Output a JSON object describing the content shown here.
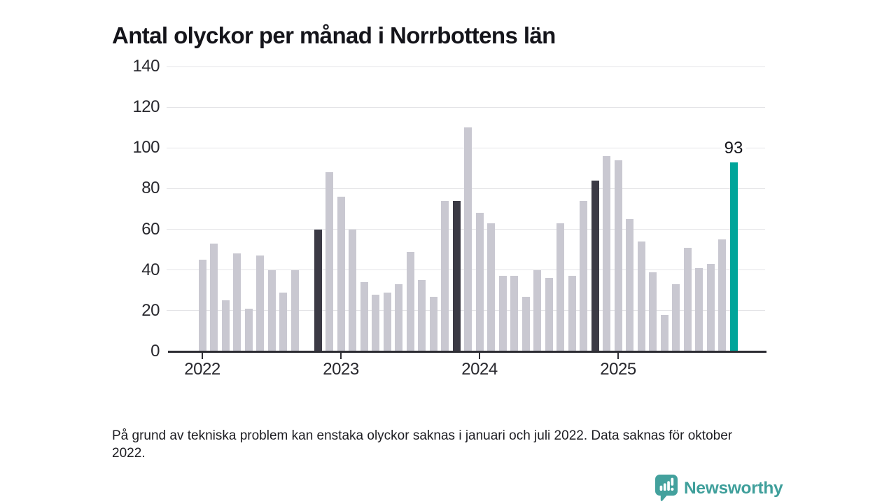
{
  "title": "Antal olyckor per månad i Norrbottens län",
  "footnote": "På grund av tekniska problem kan enstaka olyckor saknas i januari och juli 2022. Data saknas för oktober 2022.",
  "branding": {
    "name": "Newsworthy",
    "icon": "speech-bubble-bar-chart-icon",
    "logo_color": "#43a19d"
  },
  "colors": {
    "bar_default": "#c9c8d1",
    "bar_dark": "#3b3a45",
    "bar_highlight": "#00a59a",
    "axis": "#2d2d33",
    "gridline": "#e4e4e7",
    "text": "#14141a"
  },
  "chart_data": {
    "type": "bar",
    "title": "Antal olyckor per månad i Norrbottens län",
    "xlabel": "",
    "ylabel": "",
    "ylim": [
      0,
      140
    ],
    "y_ticks": [
      0,
      20,
      40,
      60,
      80,
      100,
      120,
      140
    ],
    "grid": true,
    "legend": false,
    "x_tick_labels": [
      {
        "label": "2022",
        "month_index": 0
      },
      {
        "label": "2023",
        "month_index": 12
      },
      {
        "label": "2024",
        "month_index": 24
      },
      {
        "label": "2025",
        "month_index": 36
      }
    ],
    "last_value_label": "93",
    "highlight_note": "dark bars = November of each year; teal bar = latest month (November 2025); October 2022 missing",
    "series": [
      {
        "month": "2022-01",
        "value": 45,
        "style": "default"
      },
      {
        "month": "2022-02",
        "value": 53,
        "style": "default"
      },
      {
        "month": "2022-03",
        "value": 25,
        "style": "default"
      },
      {
        "month": "2022-04",
        "value": 48,
        "style": "default"
      },
      {
        "month": "2022-05",
        "value": 21,
        "style": "default"
      },
      {
        "month": "2022-06",
        "value": 47,
        "style": "default"
      },
      {
        "month": "2022-07",
        "value": 40,
        "style": "default"
      },
      {
        "month": "2022-08",
        "value": 29,
        "style": "default"
      },
      {
        "month": "2022-09",
        "value": 40,
        "style": "default"
      },
      {
        "month": "2022-10",
        "value": null,
        "style": "default"
      },
      {
        "month": "2022-11",
        "value": 60,
        "style": "dark"
      },
      {
        "month": "2022-12",
        "value": 88,
        "style": "default"
      },
      {
        "month": "2023-01",
        "value": 76,
        "style": "default"
      },
      {
        "month": "2023-02",
        "value": 60,
        "style": "default"
      },
      {
        "month": "2023-03",
        "value": 34,
        "style": "default"
      },
      {
        "month": "2023-04",
        "value": 28,
        "style": "default"
      },
      {
        "month": "2023-05",
        "value": 29,
        "style": "default"
      },
      {
        "month": "2023-06",
        "value": 33,
        "style": "default"
      },
      {
        "month": "2023-07",
        "value": 49,
        "style": "default"
      },
      {
        "month": "2023-08",
        "value": 35,
        "style": "default"
      },
      {
        "month": "2023-09",
        "value": 27,
        "style": "default"
      },
      {
        "month": "2023-10",
        "value": 74,
        "style": "default"
      },
      {
        "month": "2023-11",
        "value": 74,
        "style": "dark"
      },
      {
        "month": "2023-12",
        "value": 110,
        "style": "default"
      },
      {
        "month": "2024-01",
        "value": 68,
        "style": "default"
      },
      {
        "month": "2024-02",
        "value": 63,
        "style": "default"
      },
      {
        "month": "2024-03",
        "value": 37,
        "style": "default"
      },
      {
        "month": "2024-04",
        "value": 37,
        "style": "default"
      },
      {
        "month": "2024-05",
        "value": 27,
        "style": "default"
      },
      {
        "month": "2024-06",
        "value": 40,
        "style": "default"
      },
      {
        "month": "2024-07",
        "value": 36,
        "style": "default"
      },
      {
        "month": "2024-08",
        "value": 63,
        "style": "default"
      },
      {
        "month": "2024-09",
        "value": 37,
        "style": "default"
      },
      {
        "month": "2024-10",
        "value": 74,
        "style": "default"
      },
      {
        "month": "2024-11",
        "value": 84,
        "style": "dark"
      },
      {
        "month": "2024-12",
        "value": 96,
        "style": "default"
      },
      {
        "month": "2025-01",
        "value": 94,
        "style": "default"
      },
      {
        "month": "2025-02",
        "value": 65,
        "style": "default"
      },
      {
        "month": "2025-03",
        "value": 54,
        "style": "default"
      },
      {
        "month": "2025-04",
        "value": 39,
        "style": "default"
      },
      {
        "month": "2025-05",
        "value": 18,
        "style": "default"
      },
      {
        "month": "2025-06",
        "value": 33,
        "style": "default"
      },
      {
        "month": "2025-07",
        "value": 51,
        "style": "default"
      },
      {
        "month": "2025-08",
        "value": 41,
        "style": "default"
      },
      {
        "month": "2025-09",
        "value": 43,
        "style": "default"
      },
      {
        "month": "2025-10",
        "value": 55,
        "style": "default"
      },
      {
        "month": "2025-11",
        "value": 93,
        "style": "highlight"
      }
    ]
  }
}
